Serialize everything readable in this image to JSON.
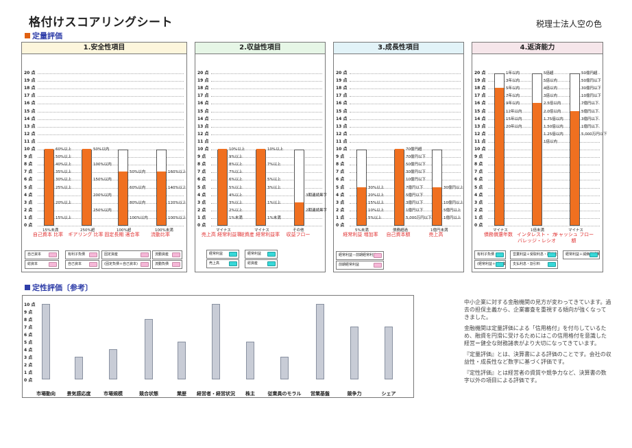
{
  "header": {
    "title": "格付けスコアリングシート",
    "firm": "税理士法人空の色"
  },
  "sections": {
    "quant": "定量評価",
    "qual": "定性評価〔参考〕"
  },
  "y_ticks": [
    "20 点",
    "19 点",
    "18 点",
    "17 点",
    "16 点",
    "15 点",
    "14 点",
    "13 点",
    "12 点",
    "11 点",
    "10 点",
    "9 点",
    "8 点",
    "7 点",
    "6 点",
    "5 点",
    "4 点",
    "3 点",
    "2 点",
    "1 点",
    "0 点"
  ],
  "chart_data": [
    {
      "type": "bar",
      "title": "1.安全性項目",
      "ylim": [
        0,
        20
      ],
      "categories": [
        "自己資本\n比率",
        "ギアリング\n比率",
        "固定長期\n適合率",
        "流動比率"
      ],
      "values": [
        10,
        10,
        7,
        7
      ],
      "base_labels": [
        "15%未満",
        "250%超",
        "100%超",
        "100%未満"
      ],
      "tiers": [
        [
          "60%以上",
          "50%以上",
          "40%以上",
          "35%以上",
          "30%以上",
          "25%以上",
          "",
          "20%以上",
          "",
          "15%以上"
        ],
        [
          "50%以内",
          "",
          "100%以内",
          "",
          "150%以内",
          "",
          "200%以内",
          "",
          "250%以内",
          ""
        ],
        [
          "",
          "",
          "",
          "50%以内",
          "",
          "60%以内",
          "",
          "80%以内",
          "",
          "100%以内"
        ],
        [
          "",
          "",
          "",
          "160%以上",
          "",
          "140%以上",
          "",
          "120%以上",
          "",
          "100%以上"
        ]
      ],
      "inputs": [
        [
          "自己資本",
          "総資本"
        ],
        [
          "有利子負債",
          "自己資本"
        ],
        [
          "固定資産",
          "(固定負債＋自己資本)"
        ],
        [
          "流動資産",
          "流動負債"
        ]
      ]
    },
    {
      "type": "bar",
      "title": "2.収益性項目",
      "ylim": [
        0,
        20
      ],
      "categories": [
        "売上高\n経常利益率",
        "総資産\n経常利益率",
        "収益フロー"
      ],
      "values": [
        10,
        10,
        3
      ],
      "base_labels": [
        "マイナス",
        "マイナス",
        "その他"
      ],
      "tiers": [
        [
          "10%以上",
          "9%以上",
          "8%以上",
          "7%以上",
          "6%以上",
          "5%以上",
          "4%以上",
          "3%以上",
          "2%以上",
          "1%未満"
        ],
        [
          "10%以上",
          "",
          "7%以上",
          "",
          "5%以上",
          "3%以上",
          "",
          "1%以上",
          "",
          "1%未満"
        ],
        [
          "",
          "",
          "",
          "",
          "",
          "",
          "3期連続黒字",
          "",
          "2期連続黒字",
          ""
        ]
      ],
      "inputs": [
        [
          "経常利益",
          "売上高"
        ],
        [
          "経常利益",
          "総資産"
        ]
      ]
    },
    {
      "type": "bar",
      "title": "3.成長性項目",
      "ylim": [
        0,
        20
      ],
      "categories": [
        "経常利益\n増加率",
        "自己資本額",
        "売上高"
      ],
      "values": [
        5,
        10,
        5
      ],
      "base_labels": [
        "5%未満",
        "債務超過",
        "1億円未満"
      ],
      "tiers": [
        [
          "",
          "",
          "",
          "",
          "",
          "30%以上",
          "20%以上",
          "15%以上",
          "10%以上",
          "5%以上"
        ],
        [
          "70億円超",
          "70億円以下",
          "50億円以下",
          "30億円以下",
          "10億円以下",
          "7億円以下",
          "5億円以下",
          "3億円以下",
          "1億円以下",
          "5,000万円以下"
        ],
        [
          "",
          "",
          "",
          "",
          "",
          "30億円以上",
          "",
          "10億円以上",
          "5億円以上",
          "1億円以上"
        ]
      ],
      "inputs": [
        [
          "経常利益－前期経常利益",
          "前期経常利益"
        ]
      ]
    },
    {
      "type": "bar",
      "title": "4.返済能力",
      "ylim": [
        0,
        20
      ],
      "categories": [
        "債務償還年数",
        "インタレスト・\nカバレッジ・レシオ",
        "キャッシュ\nフロー額"
      ],
      "values": [
        18,
        16,
        15
      ],
      "base_labels": [
        "マイナス",
        "1倍未満",
        "マイナス"
      ],
      "tiers": [
        [
          "1年以内",
          "3年以内",
          "5年以内",
          "7年以内",
          "9年以内",
          "12年以内",
          "15年以内",
          "20年以内"
        ],
        [
          "5倍超",
          "5倍以内",
          "4倍以内",
          "3倍以内",
          "2.5倍以内",
          "2.0倍以内",
          "1.75倍以内",
          "1.50倍以内",
          "1.25倍以内",
          "1倍以内"
        ],
        [
          "50億円超",
          "50億円以下",
          "30億円以下",
          "10億円以下",
          "7億円以下",
          "5億円以下",
          "3億円以下",
          "1億円以下",
          "5,000万円以下"
        ]
      ],
      "inputs": [
        [
          "有利子負債",
          "(経常利益＋減価償却費)"
        ],
        [
          "営業利益＋受取利息・配当金",
          "支払利息・割引料"
        ],
        [
          "経常利益＋減価償却費"
        ]
      ]
    }
  ],
  "qualitative": {
    "y_ticks": [
      "10 点",
      "9 点",
      "8 点",
      "7 点",
      "6 点",
      "5 点",
      "4 点",
      "3 点",
      "2 点",
      "1 点",
      "0 点"
    ],
    "categories": [
      "市場動向",
      "景気感応度",
      "市場規模",
      "競合状態",
      "業歴",
      "経営者・経営状況",
      "株主",
      "従業員のモラル",
      "営業基盤",
      "競争力",
      "シェア"
    ],
    "values": [
      10,
      3,
      4,
      8,
      5,
      10,
      5,
      3,
      10,
      7,
      7
    ]
  },
  "notes": [
    "中小企業に対する金融機関の見方が変わってきています。過去の担保主義から、企業審査を重視する傾向が強くなってきました。",
    "金融機関は定量評価による「信用格付」を付与しているため、融資を円滑に受けるためにはこの信用格付を意識した経営＝健全な財務諸表がより大切になってきています。",
    "『定量評価』とは、決算書による評価のことです。会社の収益性・成長性など数字に基づく評価です。",
    "『定性評価』とは経営者の資質や競争力など、決算書の数字以外の項目による評価です。"
  ],
  "colors": {
    "bar_fill": "#f07020",
    "accent_blue": "#2e3da8",
    "head1": "#fdf6dc",
    "head2": "#e6f6e6",
    "head3": "#e2f3f8",
    "head4": "#f6e6ea"
  }
}
